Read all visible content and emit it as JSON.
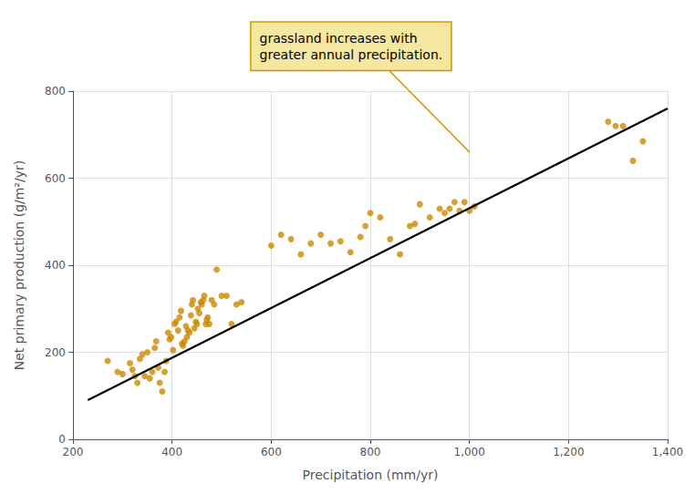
{
  "chart_data": {
    "type": "scatter",
    "xlabel": "Precipitation (mm/yr)",
    "ylabel": "Net primary production (g/m²/yr)",
    "xlim": [
      200,
      1400
    ],
    "ylim": [
      0,
      800
    ],
    "xticks": [
      200,
      400,
      600,
      800,
      {
        "value": 1000,
        "label": "1,000"
      },
      {
        "value": 1200,
        "label": "1,200"
      },
      {
        "value": 1400,
        "label": "1,400"
      }
    ],
    "yticks": [
      0,
      200,
      400,
      600,
      800
    ],
    "grid": true,
    "series": [
      {
        "type": "scatter",
        "color": "#cc8800",
        "x": [
          270,
          290,
          300,
          315,
          320,
          325,
          330,
          335,
          340,
          345,
          350,
          355,
          360,
          365,
          368,
          372,
          375,
          380,
          385,
          388,
          392,
          395,
          398,
          402,
          405,
          408,
          412,
          415,
          418,
          420,
          422,
          425,
          428,
          430,
          432,
          435,
          438,
          440,
          442,
          445,
          448,
          450,
          452,
          455,
          458,
          460,
          463,
          465,
          468,
          470,
          472,
          475,
          480,
          485,
          490,
          500,
          510,
          520,
          530,
          540,
          600,
          620,
          640,
          660,
          680,
          700,
          720,
          740,
          760,
          780,
          790,
          800,
          820,
          840,
          860,
          880,
          890,
          900,
          920,
          940,
          950,
          960,
          970,
          980,
          990,
          1000,
          1010,
          1280,
          1295,
          1310,
          1330,
          1350
        ],
        "values": [
          180,
          155,
          150,
          175,
          160,
          145,
          130,
          185,
          195,
          145,
          200,
          140,
          155,
          210,
          225,
          165,
          130,
          110,
          155,
          180,
          245,
          230,
          235,
          205,
          265,
          270,
          250,
          280,
          295,
          220,
          215,
          225,
          260,
          235,
          250,
          245,
          285,
          310,
          320,
          255,
          270,
          265,
          300,
          290,
          315,
          310,
          320,
          330,
          265,
          275,
          280,
          265,
          320,
          310,
          390,
          330,
          330,
          265,
          310,
          315,
          445,
          470,
          460,
          425,
          450,
          470,
          450,
          455,
          430,
          465,
          490,
          520,
          510,
          460,
          425,
          490,
          495,
          540,
          510,
          530,
          520,
          530,
          545,
          525,
          545,
          525,
          535,
          730,
          720,
          720,
          640,
          685
        ]
      },
      {
        "type": "line",
        "color": "#000000",
        "x": [
          230,
          1400
        ],
        "values": [
          90,
          760
        ]
      }
    ],
    "annotation": {
      "text": "grassland increases with\ngreater annual precipitation.",
      "x": 1000,
      "y": 660
    }
  }
}
